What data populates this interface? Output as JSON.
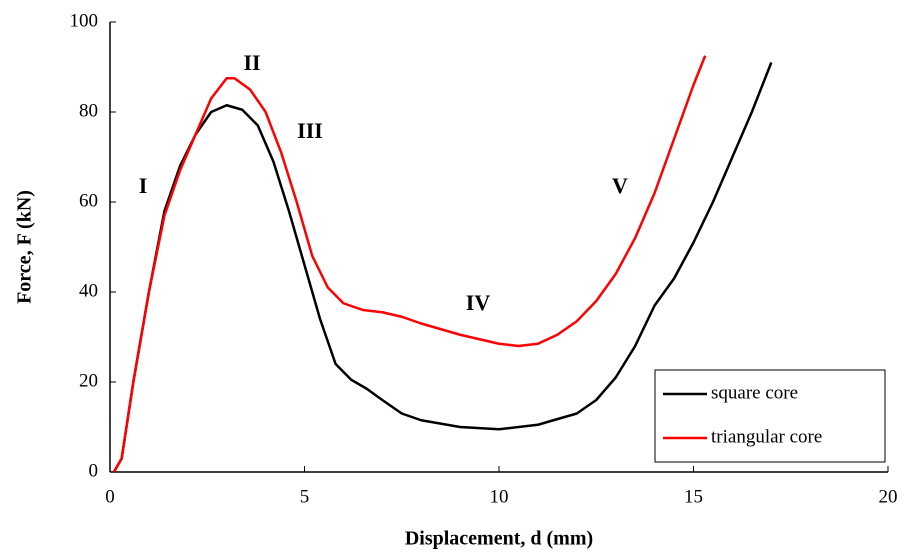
{
  "chart_data": {
    "type": "line",
    "xlabel": "Displacement, d (mm)",
    "ylabel": "Force, F (kN)",
    "xlim": [
      0,
      20
    ],
    "ylim": [
      0,
      100
    ],
    "xticks": [
      0,
      5,
      10,
      15,
      20
    ],
    "yticks": [
      0,
      20,
      40,
      60,
      80,
      100
    ],
    "annotations": [
      "I",
      "II",
      "III",
      "IV",
      "V"
    ],
    "legend": "lower right",
    "series": [
      {
        "name": "square core",
        "color": "#000000",
        "x": [
          0.1,
          0.3,
          0.6,
          1,
          1.4,
          1.8,
          2.2,
          2.6,
          3,
          3.4,
          3.8,
          4.2,
          4.6,
          5,
          5.4,
          5.8,
          6.2,
          6.6,
          7,
          7.5,
          8,
          9,
          10,
          11,
          12,
          12.5,
          13,
          13.5,
          14,
          14.5,
          15,
          15.5,
          16,
          16.5,
          17
        ],
        "values": [
          0,
          3,
          20,
          40,
          58,
          68,
          75,
          80,
          81.5,
          80.5,
          77,
          69,
          58,
          46,
          34,
          24,
          20.5,
          18.5,
          16,
          13,
          11.5,
          10,
          9.5,
          10.5,
          13,
          16,
          21,
          28,
          37,
          43,
          51,
          60,
          70,
          80,
          91
        ]
      },
      {
        "name": "triangular core",
        "color": "#ff0000",
        "x": [
          0.1,
          0.3,
          0.6,
          1,
          1.4,
          1.8,
          2.2,
          2.6,
          3,
          3.2,
          3.6,
          4,
          4.4,
          4.8,
          5.2,
          5.6,
          6,
          6.5,
          7,
          7.5,
          8,
          9,
          10,
          10.5,
          11,
          11.5,
          12,
          12.5,
          13,
          13.5,
          14,
          14.5,
          15,
          15.3
        ],
        "values": [
          0,
          3,
          20,
          40,
          57,
          67,
          75,
          83,
          87.5,
          87.5,
          85,
          80,
          71,
          60,
          48,
          41,
          37.5,
          36,
          35.5,
          34.5,
          33,
          30.5,
          28.5,
          28,
          28.5,
          30.5,
          33.5,
          38,
          44,
          52,
          62,
          74,
          86,
          92.5
        ]
      }
    ]
  }
}
